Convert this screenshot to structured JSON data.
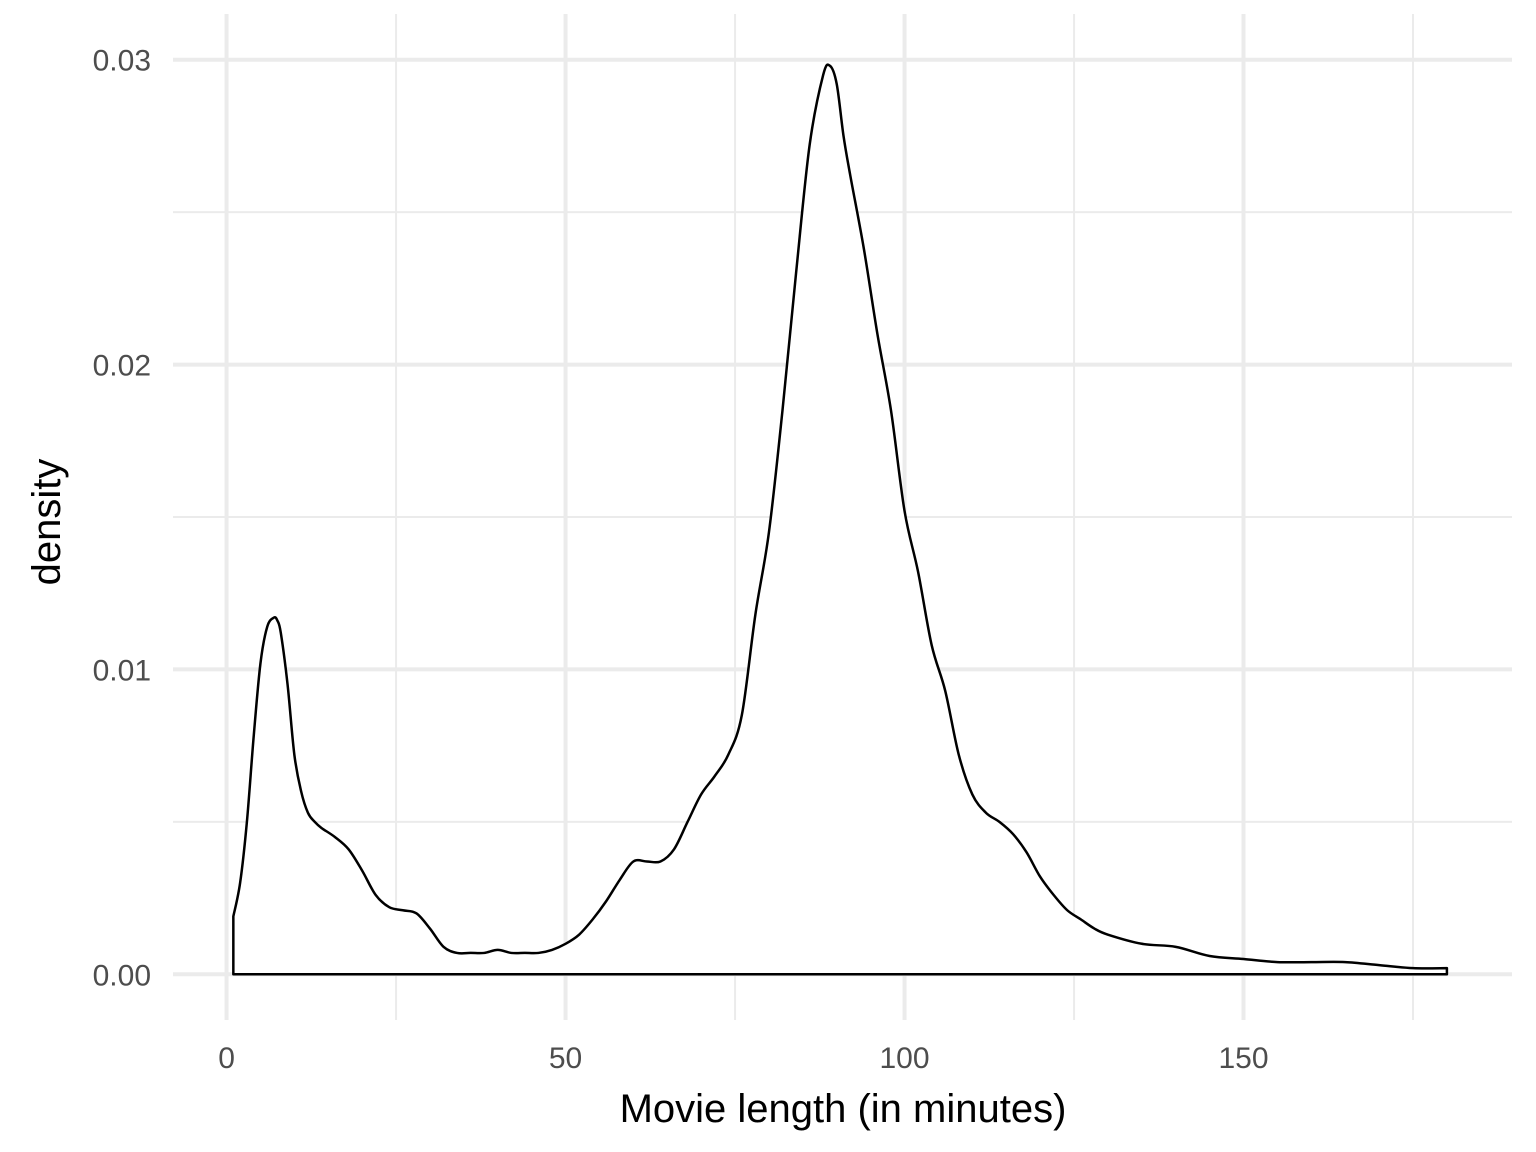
{
  "chart_data": {
    "type": "area",
    "title": "",
    "xlabel": "Movie length (in minutes)",
    "ylabel": "density",
    "xlim": [
      -7.9,
      189.6
    ],
    "ylim": [
      -0.0015,
      0.0315
    ],
    "x_ticks": [
      0,
      50,
      100,
      150
    ],
    "x_tick_labels": [
      "0",
      "50",
      "100",
      "150"
    ],
    "x_minor_ticks": [
      25,
      75,
      125,
      175
    ],
    "y_ticks": [
      0,
      0.01,
      0.02,
      0.03
    ],
    "y_tick_labels": [
      "0.00",
      "0.01",
      "0.02",
      "0.03"
    ],
    "y_minor_ticks": [
      0.005,
      0.015,
      0.025
    ],
    "grid": true,
    "legend": "none",
    "fill_color": "#ffffff",
    "line_color": "#000000",
    "grid_color": "#ebebeb",
    "series": [
      {
        "x": [
          1,
          2,
          3,
          4,
          5,
          6,
          7,
          7.5,
          8,
          9,
          10,
          11,
          12,
          13,
          14,
          16,
          18,
          20,
          22,
          24,
          26,
          28,
          30,
          32,
          34,
          36,
          38,
          40,
          42,
          44,
          46,
          48,
          50,
          52,
          54,
          56,
          58,
          60,
          62,
          64,
          66,
          68,
          70,
          72,
          74,
          76,
          78,
          80,
          82,
          84,
          86,
          88,
          89,
          90,
          91,
          92,
          94,
          96,
          98,
          100,
          102,
          104,
          106,
          108,
          110,
          112,
          114,
          116,
          118,
          120,
          122,
          124,
          126,
          128,
          130,
          135,
          140,
          145,
          150,
          155,
          160,
          165,
          170,
          175,
          180
        ],
        "y": [
          0.0019,
          0.003,
          0.005,
          0.0078,
          0.0102,
          0.0114,
          0.0117,
          0.0116,
          0.0112,
          0.0095,
          0.0072,
          0.006,
          0.0053,
          0.005,
          0.0048,
          0.0045,
          0.0041,
          0.0034,
          0.0026,
          0.0022,
          0.0021,
          0.002,
          0.0015,
          0.0009,
          0.0007,
          0.0007,
          0.0007,
          0.0008,
          0.0007,
          0.0007,
          0.0007,
          0.0008,
          0.001,
          0.0013,
          0.0018,
          0.0024,
          0.0031,
          0.0037,
          0.0037,
          0.0037,
          0.0041,
          0.005,
          0.0059,
          0.0065,
          0.0072,
          0.0085,
          0.0118,
          0.0145,
          0.0185,
          0.023,
          0.0272,
          0.0295,
          0.0298,
          0.0292,
          0.0275,
          0.0262,
          0.0238,
          0.021,
          0.0185,
          0.0152,
          0.0132,
          0.0108,
          0.0093,
          0.0072,
          0.0059,
          0.0053,
          0.005,
          0.0046,
          0.004,
          0.0032,
          0.0026,
          0.0021,
          0.0018,
          0.0015,
          0.0013,
          0.001,
          0.0009,
          0.0006,
          0.0005,
          0.0004,
          0.0004,
          0.0004,
          0.0003,
          0.0002,
          0.0002
        ]
      }
    ]
  }
}
